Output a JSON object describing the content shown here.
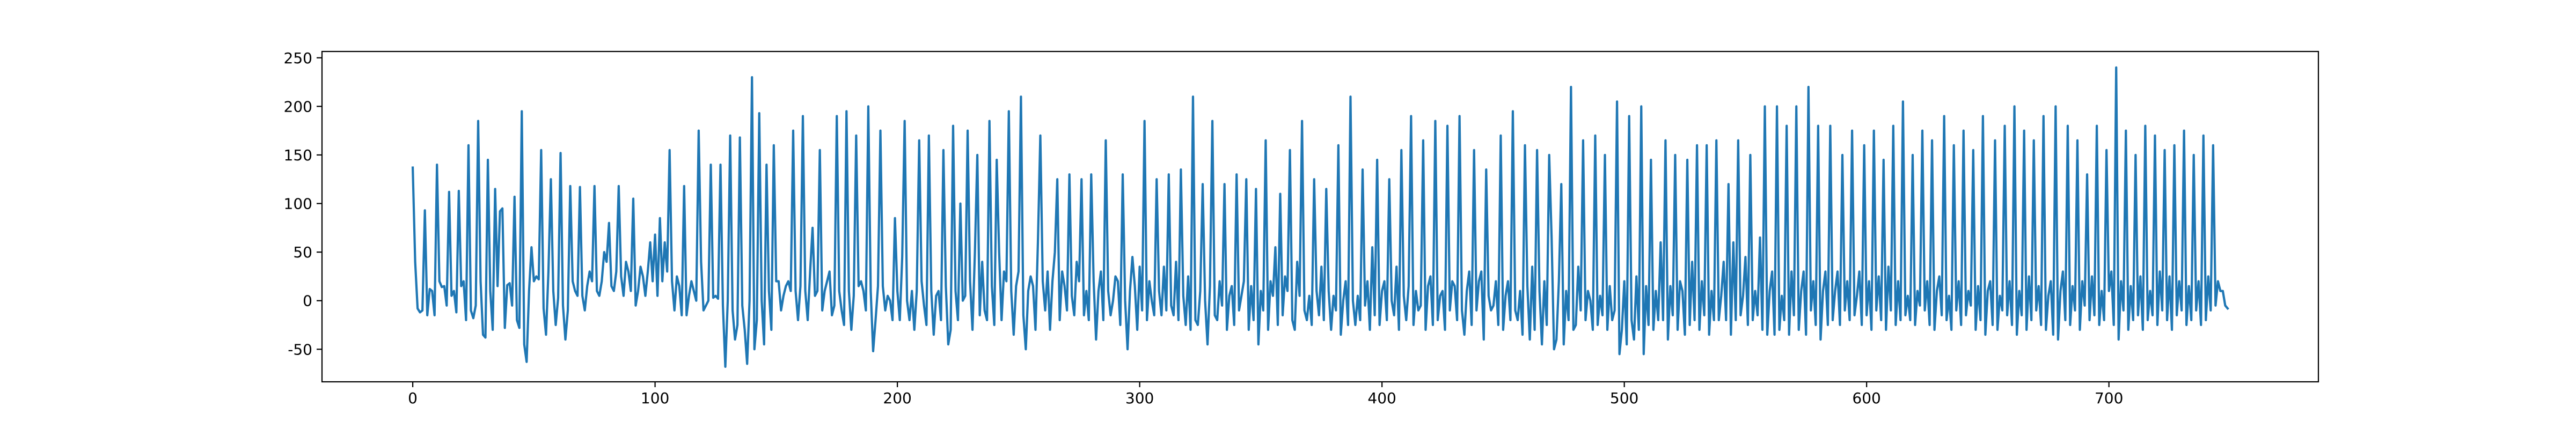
{
  "chart_data": {
    "type": "line",
    "color": "#1f77b4",
    "xlim": [
      -37.45,
      786.45
    ],
    "ylim": [
      -83.5,
      256.5
    ],
    "xticks": [
      0,
      100,
      200,
      300,
      400,
      500,
      600,
      700
    ],
    "yticks": [
      -50,
      0,
      50,
      100,
      150,
      200,
      250
    ],
    "x": [
      0,
      1,
      2,
      3,
      4,
      5,
      6,
      7,
      8,
      9,
      10,
      11,
      12,
      13,
      14,
      15,
      16,
      17,
      18,
      19,
      20,
      21,
      22,
      23,
      24,
      25,
      26,
      27,
      28,
      29,
      30,
      31,
      32,
      33,
      34,
      35,
      36,
      37,
      38,
      39,
      40,
      41,
      42,
      43,
      44,
      45,
      46,
      47,
      48,
      49,
      50,
      51,
      52,
      53,
      54,
      55,
      56,
      57,
      58,
      59,
      60,
      61,
      62,
      63,
      64,
      65,
      66,
      67,
      68,
      69,
      70,
      71,
      72,
      73,
      74,
      75,
      76,
      77,
      78,
      79,
      80,
      81,
      82,
      83,
      84,
      85,
      86,
      87,
      88,
      89,
      90,
      91,
      92,
      93,
      94,
      95,
      96,
      97,
      98,
      99,
      100,
      101,
      102,
      103,
      104,
      105,
      106,
      107,
      108,
      109,
      110,
      111,
      112,
      113,
      114,
      115,
      116,
      117,
      118,
      119,
      120,
      121,
      122,
      123,
      124,
      125,
      126,
      127,
      128,
      129,
      130,
      131,
      132,
      133,
      134,
      135,
      136,
      137,
      138,
      139,
      140,
      141,
      142,
      143,
      144,
      145,
      146,
      147,
      148,
      149,
      150,
      151,
      152,
      153,
      154,
      155,
      156,
      157,
      158,
      159,
      160,
      161,
      162,
      163,
      164,
      165,
      166,
      167,
      168,
      169,
      170,
      171,
      172,
      173,
      174,
      175,
      176,
      177,
      178,
      179,
      180,
      181,
      182,
      183,
      184,
      185,
      186,
      187,
      188,
      189,
      190,
      191,
      192,
      193,
      194,
      195,
      196,
      197,
      198,
      199,
      200,
      201,
      202,
      203,
      204,
      205,
      206,
      207,
      208,
      209,
      210,
      211,
      212,
      213,
      214,
      215,
      216,
      217,
      218,
      219,
      220,
      221,
      222,
      223,
      224,
      225,
      226,
      227,
      228,
      229,
      230,
      231,
      232,
      233,
      234,
      235,
      236,
      237,
      238,
      239,
      240,
      241,
      242,
      243,
      244,
      245,
      246,
      247,
      248,
      249,
      250,
      251,
      252,
      253,
      254,
      255,
      256,
      257,
      258,
      259,
      260,
      261,
      262,
      263,
      264,
      265,
      266,
      267,
      268,
      269,
      270,
      271,
      272,
      273,
      274,
      275,
      276,
      277,
      278,
      279,
      280,
      281,
      282,
      283,
      284,
      285,
      286,
      287,
      288,
      289,
      290,
      291,
      292,
      293,
      294,
      295,
      296,
      297,
      298,
      299,
      300,
      301,
      302,
      303,
      304,
      305,
      306,
      307,
      308,
      309,
      310,
      311,
      312,
      313,
      314,
      315,
      316,
      317,
      318,
      319,
      320,
      321,
      322,
      323,
      324,
      325,
      326,
      327,
      328,
      329,
      330,
      331,
      332,
      333,
      334,
      335,
      336,
      337,
      338,
      339,
      340,
      341,
      342,
      343,
      344,
      345,
      346,
      347,
      348,
      349,
      350,
      351,
      352,
      353,
      354,
      355,
      356,
      357,
      358,
      359,
      360,
      361,
      362,
      363,
      364,
      365,
      366,
      367,
      368,
      369,
      370,
      371,
      372,
      373,
      374,
      375,
      376,
      377,
      378,
      379,
      380,
      381,
      382,
      383,
      384,
      385,
      386,
      387,
      388,
      389,
      390,
      391,
      392,
      393,
      394,
      395,
      396,
      397,
      398,
      399,
      400,
      401,
      402,
      403,
      404,
      405,
      406,
      407,
      408,
      409,
      410,
      411,
      412,
      413,
      414,
      415,
      416,
      417,
      418,
      419,
      420,
      421,
      422,
      423,
      424,
      425,
      426,
      427,
      428,
      429,
      430,
      431,
      432,
      433,
      434,
      435,
      436,
      437,
      438,
      439,
      440,
      441,
      442,
      443,
      444,
      445,
      446,
      447,
      448,
      449,
      450,
      451,
      452,
      453,
      454,
      455,
      456,
      457,
      458,
      459,
      460,
      461,
      462,
      463,
      464,
      465,
      466,
      467,
      468,
      469,
      470,
      471,
      472,
      473,
      474,
      475,
      476,
      477,
      478,
      479,
      480,
      481,
      482,
      483,
      484,
      485,
      486,
      487,
      488,
      489,
      490,
      491,
      492,
      493,
      494,
      495,
      496,
      497,
      498,
      499,
      500,
      501,
      502,
      503,
      504,
      505,
      506,
      507,
      508,
      509,
      510,
      511,
      512,
      513,
      514,
      515,
      516,
      517,
      518,
      519,
      520,
      521,
      522,
      523,
      524,
      525,
      526,
      527,
      528,
      529,
      530,
      531,
      532,
      533,
      534,
      535,
      536,
      537,
      538,
      539,
      540,
      541,
      542,
      543,
      544,
      545,
      546,
      547,
      548,
      549,
      550,
      551,
      552,
      553,
      554,
      555,
      556,
      557,
      558,
      559,
      560,
      561,
      562,
      563,
      564,
      565,
      566,
      567,
      568,
      569,
      570,
      571,
      572,
      573,
      574,
      575,
      576,
      577,
      578,
      579,
      580,
      581,
      582,
      583,
      584,
      585,
      586,
      587,
      588,
      589,
      590,
      591,
      592,
      593,
      594,
      595,
      596,
      597,
      598,
      599,
      600,
      601,
      602,
      603,
      604,
      605,
      606,
      607,
      608,
      609,
      610,
      611,
      612,
      613,
      614,
      615,
      616,
      617,
      618,
      619,
      620,
      621,
      622,
      623,
      624,
      625,
      626,
      627,
      628,
      629,
      630,
      631,
      632,
      633,
      634,
      635,
      636,
      637,
      638,
      639,
      640,
      641,
      642,
      643,
      644,
      645,
      646,
      647,
      648,
      649,
      650,
      651,
      652,
      653,
      654,
      655,
      656,
      657,
      658,
      659,
      660,
      661,
      662,
      663,
      664,
      665,
      666,
      667,
      668,
      669,
      670,
      671,
      672,
      673,
      674,
      675,
      676,
      677,
      678,
      679,
      680,
      681,
      682,
      683,
      684,
      685,
      686,
      687,
      688,
      689,
      690,
      691,
      692,
      693,
      694,
      695,
      696,
      697,
      698,
      699,
      700,
      701,
      702,
      703,
      704,
      705,
      706,
      707,
      708,
      709,
      710,
      711,
      712,
      713,
      714,
      715,
      716,
      717,
      718,
      719,
      720,
      721,
      722,
      723,
      724,
      725,
      726,
      727,
      728,
      729,
      730,
      731,
      732,
      733,
      734,
      735,
      736,
      737,
      738,
      739,
      740,
      741,
      742,
      743,
      744,
      745,
      746,
      747,
      748,
      749
    ],
    "values": [
      137,
      40,
      -8,
      -12,
      -10,
      93,
      -15,
      12,
      10,
      -15,
      140,
      20,
      14,
      15,
      -5,
      112,
      5,
      10,
      -12,
      113,
      15,
      20,
      -20,
      160,
      -10,
      -18,
      -5,
      185,
      20,
      -35,
      -38,
      145,
      10,
      -30,
      115,
      15,
      92,
      95,
      -28,
      16,
      18,
      -5,
      107,
      -20,
      -28,
      195,
      -45,
      -63,
      10,
      55,
      20,
      25,
      22,
      155,
      -8,
      -35,
      30,
      125,
      10,
      -25,
      3,
      152,
      -5,
      -40,
      -10,
      118,
      20,
      10,
      5,
      117,
      5,
      -10,
      15,
      30,
      20,
      118,
      10,
      5,
      20,
      50,
      40,
      80,
      15,
      10,
      30,
      118,
      25,
      5,
      40,
      30,
      10,
      105,
      -5,
      10,
      35,
      25,
      5,
      30,
      60,
      20,
      68,
      5,
      85,
      20,
      60,
      30,
      155,
      20,
      -10,
      25,
      15,
      -15,
      118,
      -15,
      5,
      20,
      10,
      0,
      175,
      40,
      -10,
      -5,
      0,
      140,
      3,
      5,
      2,
      140,
      -5,
      -68,
      0,
      170,
      -10,
      -40,
      -25,
      168,
      -5,
      -30,
      -65,
      0,
      230,
      -50,
      -20,
      193,
      0,
      -45,
      140,
      10,
      -30,
      160,
      20,
      20,
      -10,
      5,
      15,
      20,
      10,
      175,
      10,
      -20,
      15,
      190,
      10,
      -20,
      30,
      75,
      5,
      10,
      155,
      -10,
      10,
      20,
      30,
      -15,
      -5,
      190,
      10,
      -10,
      -25,
      195,
      10,
      -30,
      5,
      170,
      15,
      20,
      10,
      -10,
      200,
      10,
      -52,
      -20,
      15,
      175,
      15,
      -10,
      5,
      0,
      -20,
      85,
      10,
      -20,
      45,
      185,
      0,
      -20,
      10,
      -30,
      10,
      165,
      20,
      -5,
      -25,
      170,
      10,
      -35,
      5,
      10,
      -20,
      155,
      15,
      -45,
      -30,
      180,
      10,
      -20,
      100,
      0,
      5,
      175,
      20,
      -30,
      50,
      150,
      -15,
      40,
      -10,
      -20,
      185,
      15,
      -25,
      145,
      50,
      -20,
      30,
      20,
      195,
      10,
      -35,
      15,
      30,
      210,
      -15,
      -50,
      10,
      25,
      15,
      -30,
      60,
      170,
      20,
      -10,
      30,
      -30,
      20,
      50,
      125,
      -20,
      30,
      15,
      -10,
      130,
      5,
      -15,
      40,
      20,
      125,
      -15,
      10,
      -20,
      130,
      20,
      -40,
      10,
      30,
      -20,
      165,
      10,
      -15,
      0,
      25,
      20,
      -25,
      130,
      0,
      -50,
      10,
      45,
      15,
      -30,
      35,
      -10,
      185,
      -20,
      20,
      0,
      -15,
      125,
      10,
      -15,
      35,
      -10,
      130,
      -5,
      -15,
      40,
      -20,
      135,
      5,
      -25,
      25,
      -30,
      210,
      -20,
      -25,
      10,
      120,
      0,
      -45,
      15,
      185,
      -15,
      -20,
      20,
      -5,
      120,
      -30,
      5,
      15,
      -25,
      130,
      -10,
      5,
      20,
      125,
      -30,
      15,
      -20,
      115,
      -45,
      10,
      -10,
      165,
      -30,
      20,
      5,
      55,
      -25,
      110,
      -15,
      25,
      10,
      155,
      -20,
      -30,
      40,
      5,
      185,
      -10,
      -20,
      5,
      -25,
      125,
      10,
      -15,
      35,
      -20,
      115,
      10,
      -30,
      5,
      -10,
      160,
      -35,
      0,
      20,
      -25,
      210,
      0,
      -25,
      5,
      -20,
      135,
      -5,
      20,
      -30,
      55,
      -15,
      145,
      -25,
      10,
      20,
      -20,
      125,
      0,
      -15,
      35,
      -30,
      155,
      5,
      -20,
      15,
      190,
      -25,
      10,
      -10,
      -5,
      165,
      -30,
      15,
      25,
      -25,
      185,
      -20,
      5,
      10,
      -30,
      180,
      -10,
      20,
      15,
      -20,
      190,
      -10,
      -35,
      10,
      30,
      -25,
      155,
      -10,
      20,
      30,
      -40,
      135,
      5,
      -10,
      -5,
      20,
      -25,
      170,
      -30,
      5,
      20,
      -20,
      195,
      -10,
      -20,
      10,
      -35,
      160,
      15,
      -40,
      35,
      -30,
      155,
      10,
      -45,
      20,
      -25,
      150,
      65,
      -50,
      -40,
      20,
      120,
      -45,
      10,
      -20,
      220,
      -30,
      -25,
      35,
      -10,
      165,
      -20,
      10,
      0,
      -30,
      170,
      -25,
      5,
      -15,
      150,
      -30,
      15,
      -20,
      -10,
      205,
      -55,
      -30,
      20,
      -45,
      190,
      -20,
      -40,
      25,
      -30,
      200,
      -55,
      15,
      -25,
      145,
      -30,
      10,
      -20,
      60,
      -20,
      165,
      -40,
      15,
      -15,
      150,
      -30,
      20,
      10,
      -35,
      145,
      -25,
      40,
      -20,
      160,
      -30,
      20,
      -15,
      160,
      -35,
      10,
      -20,
      165,
      -20,
      5,
      40,
      -20,
      120,
      -35,
      60,
      -20,
      165,
      -15,
      5,
      45,
      -25,
      150,
      -20,
      10,
      -15,
      65,
      -30,
      200,
      -35,
      10,
      30,
      -35,
      200,
      -30,
      5,
      -20,
      180,
      -35,
      30,
      -15,
      200,
      -30,
      10,
      30,
      -35,
      220,
      -10,
      20,
      -25,
      180,
      -40,
      10,
      30,
      -25,
      180,
      -20,
      10,
      30,
      -25,
      150,
      -10,
      20,
      -20,
      175,
      -15,
      5,
      30,
      -25,
      160,
      -15,
      20,
      -30,
      175,
      -10,
      25,
      -20,
      145,
      -30,
      35,
      -10,
      180,
      -25,
      20,
      -20,
      205,
      -15,
      5,
      -20,
      150,
      -25,
      10,
      -5,
      175,
      -10,
      20,
      -25,
      165,
      -30,
      10,
      25,
      -15,
      190,
      -20,
      5,
      -30,
      160,
      -10,
      20,
      -25,
      175,
      -15,
      10,
      -5,
      155,
      -30,
      15,
      -20,
      190,
      -35,
      10,
      20,
      -25,
      165,
      -30,
      5,
      -10,
      180,
      -15,
      20,
      -25,
      200,
      -35,
      10,
      -15,
      175,
      -30,
      25,
      -20,
      165,
      -10,
      15,
      -25,
      190,
      -30,
      5,
      20,
      -35,
      200,
      -40,
      10,
      30,
      -20,
      180,
      -25,
      15,
      -10,
      165,
      -30,
      20,
      -5,
      130,
      -20,
      25,
      -15,
      180,
      -25,
      10,
      -20,
      155,
      10,
      30,
      -25,
      240,
      -40,
      20,
      -10,
      175,
      -30,
      15,
      -20,
      150,
      -15,
      25,
      -30,
      180,
      -20,
      10,
      -15,
      170,
      -25,
      30,
      -10,
      155,
      -20,
      25,
      -30,
      160,
      -15,
      20,
      -10,
      175,
      -25,
      15,
      -20,
      150,
      -10,
      20,
      -25,
      170,
      -20,
      25,
      -10,
      160,
      -5,
      20,
      10,
      10,
      -5,
      -8
    ]
  }
}
